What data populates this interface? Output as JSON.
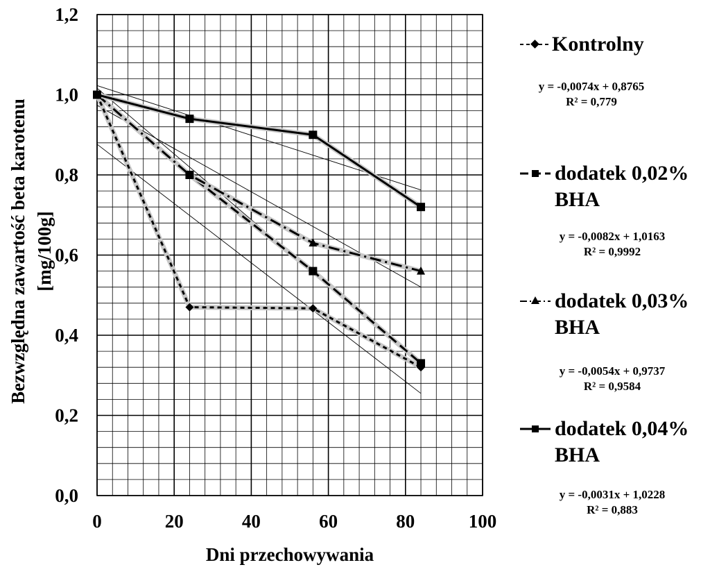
{
  "chart_data": {
    "type": "line",
    "xlabel": "Dni przechowywania",
    "ylabel_line1": "Bezwzględna zawartość beta karotenu",
    "ylabel_line2": "[mg/100g]",
    "xlim": [
      0,
      100
    ],
    "ylim": [
      0,
      1.2
    ],
    "x_ticks": [
      "0",
      "20",
      "40",
      "60",
      "80",
      "100"
    ],
    "y_ticks": [
      "0,0",
      "0,2",
      "0,4",
      "0,6",
      "0,8",
      "1,0",
      "1,2"
    ],
    "grid": true,
    "legend_position": "right",
    "series": [
      {
        "name": "Kontrolny",
        "name_line2": "",
        "marker": "diamond",
        "line_style": "dashed",
        "x": [
          0,
          24,
          56,
          84
        ],
        "y": [
          1.0,
          0.47,
          0.467,
          0.32
        ],
        "trendline": {
          "slope": -0.0074,
          "intercept": 0.8765
        },
        "equation": "y = -0,0074x + 0,8765",
        "r2": "R² = 0,779"
      },
      {
        "name": "dodatek 0,02%",
        "name_line2": "BHA",
        "marker": "square",
        "line_style": "longdash",
        "x": [
          0,
          24,
          56,
          84
        ],
        "y": [
          1.0,
          0.8,
          0.56,
          0.33
        ],
        "trendline": {
          "slope": -0.0082,
          "intercept": 1.0163
        },
        "equation": "y = -0,0082x + 1,0163",
        "r2": "R² = 0,9992"
      },
      {
        "name": "dodatek 0,03%",
        "name_line2": "BHA",
        "marker": "triangle",
        "line_style": "dashdot",
        "x": [
          0,
          24,
          56,
          84
        ],
        "y": [
          1.0,
          0.8,
          0.63,
          0.56
        ],
        "trendline": {
          "slope": -0.0054,
          "intercept": 0.9737
        },
        "equation": "y = -0,0054x + 0,9737",
        "r2": "R² = 0,9584"
      },
      {
        "name": "dodatek 0,04%",
        "name_line2": "BHA",
        "marker": "square",
        "line_style": "solid",
        "x": [
          0,
          24,
          56,
          84
        ],
        "y": [
          1.0,
          0.94,
          0.9,
          0.72
        ],
        "trendline": {
          "slope": -0.0031,
          "intercept": 1.0228
        },
        "equation": "y = -0,0031x + 1,0228",
        "r2": "R² = 0,883"
      }
    ]
  }
}
